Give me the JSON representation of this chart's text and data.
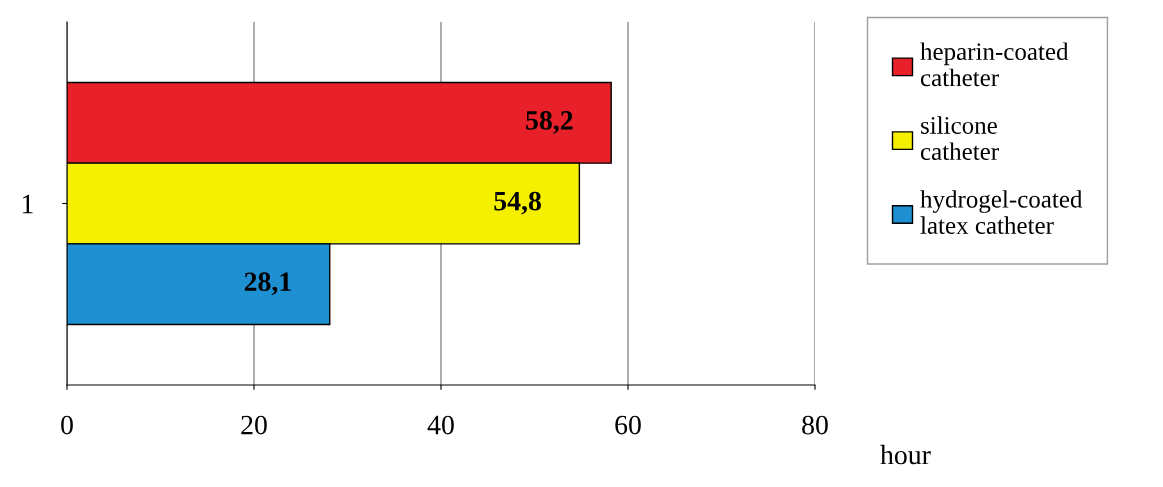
{
  "chart_data": {
    "type": "bar",
    "orientation": "horizontal",
    "categories": [
      "1"
    ],
    "xlabel": "hour",
    "series": [
      {
        "name": "heparin-coated catheter",
        "color": "#e8202a",
        "values": [
          58.2
        ],
        "value_labels": [
          "58,2"
        ]
      },
      {
        "name": "silicone catheter",
        "color": "#f5f000",
        "values": [
          54.8
        ],
        "value_labels": [
          "54,8"
        ]
      },
      {
        "name": "hydrogel-coated latex catheter",
        "color": "#1e8fd0",
        "values": [
          28.1
        ],
        "value_labels": [
          "28,1"
        ]
      }
    ],
    "xlim": [
      0,
      80
    ],
    "xticks": [
      0,
      20,
      40,
      60,
      80
    ],
    "grid": "x",
    "legend": "right"
  }
}
